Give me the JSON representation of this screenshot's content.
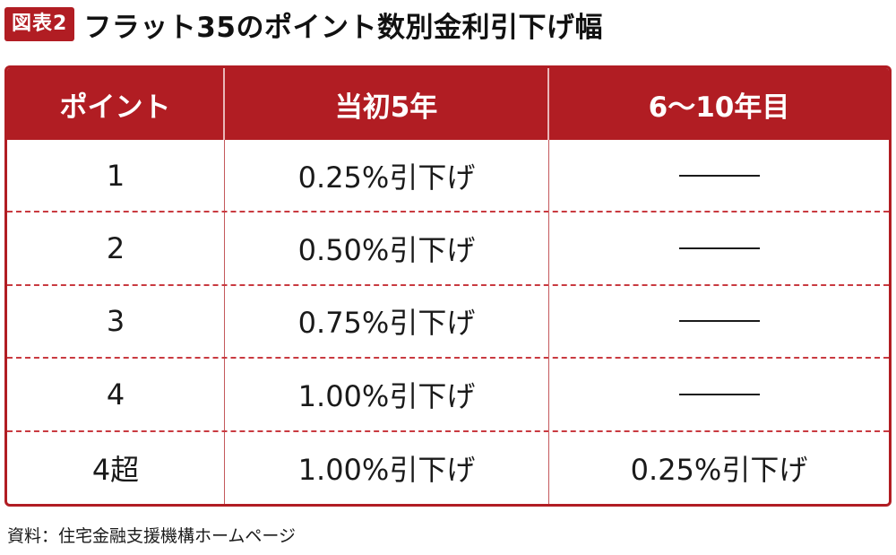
{
  "figure": {
    "badge": "図表2",
    "title": "フラット35のポイント数別金利引下げ幅"
  },
  "table": {
    "headers": [
      "ポイント",
      "当初5年",
      "6〜10年目"
    ],
    "rows": [
      {
        "points": "1",
        "first5": "0.25%引下げ",
        "years6to10": ""
      },
      {
        "points": "2",
        "first5": "0.50%引下げ",
        "years6to10": ""
      },
      {
        "points": "3",
        "first5": "0.75%引下げ",
        "years6to10": ""
      },
      {
        "points": "4",
        "first5": "1.00%引下げ",
        "years6to10": ""
      },
      {
        "points": "4超",
        "first5": "1.00%引下げ",
        "years6to10": "0.25%引下げ"
      }
    ]
  },
  "source": "資料：住宅金融支援機構ホームページ",
  "colors": {
    "accent": "#b11d23"
  }
}
